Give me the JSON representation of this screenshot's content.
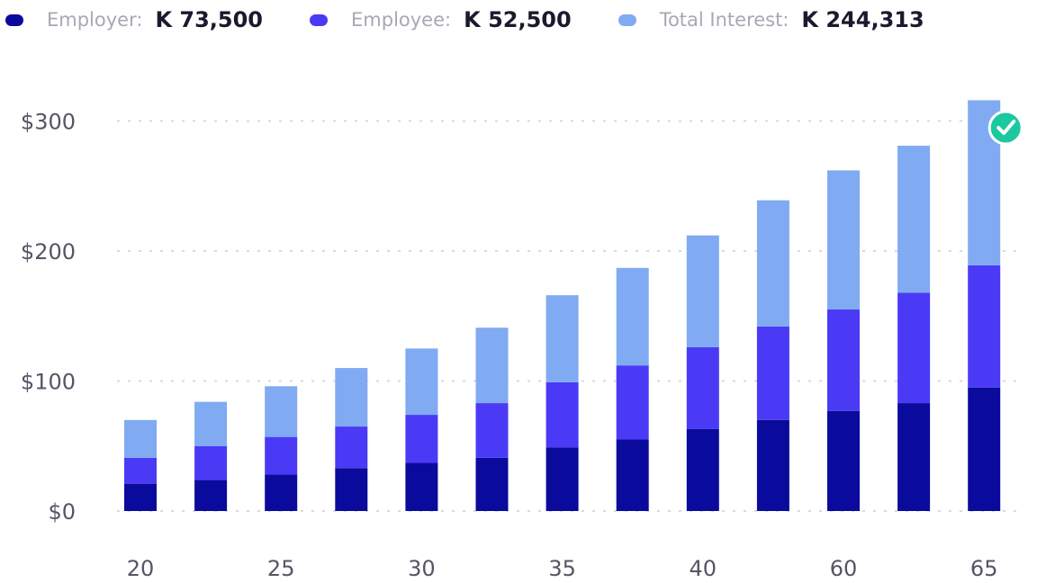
{
  "legend": {
    "employer": {
      "label": "Employer:",
      "value": "K 73,500"
    },
    "employee": {
      "label": "Employee:",
      "value": "K 52,500"
    },
    "interest": {
      "label": "Total Interest:",
      "value": "K 244,313"
    }
  },
  "colors": {
    "employer": "#0a0a9c",
    "employee": "#4a3af5",
    "interest": "#80aaf2",
    "check": "#1cc8a0",
    "grid": "#d9d9e3"
  },
  "icons": {
    "goal": "check-circle-icon"
  },
  "chart_data": {
    "type": "bar",
    "stacked": true,
    "categories": [
      "20",
      "",
      "25",
      "",
      "30",
      "",
      "35",
      "",
      "40",
      "",
      "60",
      "",
      "65"
    ],
    "series": [
      {
        "name": "Employer",
        "values": [
          21,
          24,
          28,
          33,
          37,
          41,
          49,
          55,
          63,
          70,
          77,
          83,
          95
        ]
      },
      {
        "name": "Employee",
        "values": [
          20,
          26,
          29,
          32,
          37,
          42,
          50,
          57,
          63,
          72,
          78,
          85,
          94
        ]
      },
      {
        "name": "Total Interest",
        "values": [
          29,
          34,
          39,
          45,
          51,
          58,
          67,
          75,
          86,
          97,
          107,
          113,
          127
        ]
      }
    ],
    "yticks": [
      "$0",
      "$100",
      "$200",
      "$300"
    ],
    "ytick_values": [
      0,
      100,
      200,
      300
    ],
    "ylim": [
      0,
      316
    ],
    "grid": true,
    "legend_position": "top-left"
  }
}
